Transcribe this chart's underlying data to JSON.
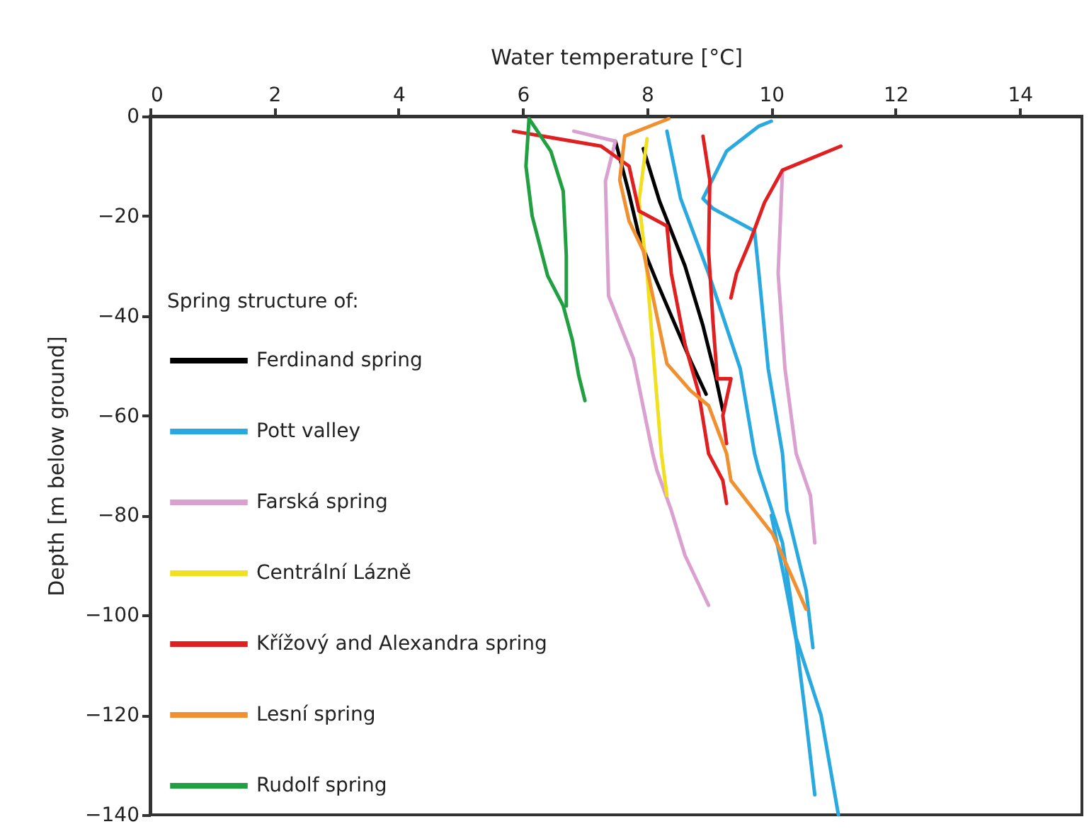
{
  "chart_data": {
    "type": "line",
    "xlabel": "Water temperature [°C]",
    "ylabel": "Depth [m below ground]",
    "legend_title": "Spring structure of:",
    "legend": "bottom left",
    "xlim": [
      0,
      15
    ],
    "xticks": [
      0,
      2,
      4,
      6,
      8,
      10,
      12,
      14
    ],
    "ylim": [
      -140,
      0
    ],
    "yticks": [
      0,
      -20,
      -40,
      -60,
      -80,
      -100,
      -120,
      -140
    ],
    "grid": false,
    "series": [
      {
        "name": "Ferdinand spring",
        "color": "#000000",
        "x": [
          7.49,
          7.7,
          7.89,
          8.15,
          8.39,
          8.7,
          8.95,
          null,
          7.94,
          8.2,
          8.61,
          8.9,
          9.1,
          9.22
        ],
        "values": [
          -5,
          -15,
          -25,
          -33,
          -40,
          -49,
          -55.7,
          null,
          -6.5,
          -17,
          -30,
          -42,
          -52,
          -59
        ]
      },
      {
        "name": "Pott valley",
        "color": "#29a9e0",
        "x": [
          8.32,
          8.54,
          8.99,
          9.5,
          9.73,
          9.8,
          10.18,
          10.4,
          10.8,
          11.08,
          null,
          10.0,
          9.8,
          9.28,
          8.9,
          9.06,
          9.73,
          9.8,
          9.95,
          10.18,
          10.25,
          10.56,
          10.67,
          null,
          10.0,
          10.2,
          10.4,
          10.55,
          10.7
        ],
        "values": [
          -3,
          -16.5,
          -31.5,
          -50.6,
          -67.6,
          -71,
          -85.5,
          -104.5,
          -120,
          -140,
          null,
          -1,
          -2,
          -7,
          -16.5,
          -18.5,
          -23,
          -31.5,
          -50.6,
          -67.6,
          -79,
          -95,
          -106.5,
          null,
          -80,
          -92,
          -105,
          -120,
          -136
        ]
      },
      {
        "name": "Farská spring",
        "color": "#d9a0d0",
        "x": [
          6.82,
          7.49,
          7.33,
          7.38,
          7.78,
          8.09,
          8.16,
          8.39,
          8.61,
          8.99,
          null,
          10.18,
          10.11,
          10.22,
          10.4,
          10.63,
          10.7
        ],
        "values": [
          -3,
          -5,
          -13,
          -36,
          -48.6,
          -67.6,
          -71,
          -79,
          -88,
          -98,
          null,
          -10.8,
          -31.5,
          -50.6,
          -67.6,
          -76,
          -85.5
        ]
      },
      {
        "name": "Centrální Lázně",
        "color": "#f0e020",
        "x": [
          8.0,
          7.87,
          8.0,
          8.12,
          8.23,
          8.32
        ],
        "values": [
          -4.5,
          -17,
          -31.5,
          -50.6,
          -67.6,
          -76
        ]
      },
      {
        "name": "Křížový and Alexandra spring",
        "color": "#e02020",
        "x": [
          5.85,
          7.26,
          7.71,
          7.87,
          8.32,
          8.39,
          8.61,
          8.83,
          8.99,
          9.22,
          9.28,
          null,
          8.9,
          9.01,
          8.99,
          9.06,
          9.13,
          9.35,
          9.22,
          9.28,
          null,
          11.12,
          10.18,
          9.89,
          9.66,
          9.44,
          9.35
        ],
        "values": [
          -3,
          -6,
          -10,
          -19,
          -22,
          -31.5,
          -45.7,
          -55.4,
          -67.6,
          -73,
          -77.6,
          null,
          -4,
          -12.8,
          -27,
          -41,
          -52.6,
          -52.6,
          -60,
          -65.6,
          null,
          -6,
          -10.8,
          -17.3,
          -25,
          -31.5,
          -36.4
        ]
      },
      {
        "name": "Lesní spring",
        "color": "#f09030",
        "x": [
          8.35,
          7.64,
          7.56,
          7.71,
          7.94,
          8.09,
          8.32,
          8.7,
          8.99,
          9.28,
          9.35,
          9.66,
          10.02,
          10.25,
          10.56
        ],
        "values": [
          -0.5,
          -4,
          -12.8,
          -21,
          -27,
          -36,
          -49.6,
          -55,
          -58,
          -67.6,
          -73,
          -78,
          -83.7,
          -90,
          -98.8
        ]
      },
      {
        "name": "Rudolf spring",
        "color": "#20a040",
        "x": [
          6.1,
          6.05,
          6.15,
          6.4,
          6.65,
          6.8,
          6.9,
          7.0,
          null,
          6.1,
          6.45,
          6.65,
          6.7,
          6.7
        ],
        "values": [
          -0.5,
          -10,
          -20,
          -32,
          -38,
          -45,
          -52,
          -57,
          null,
          -0.5,
          -7,
          -15,
          -28,
          -38
        ]
      }
    ]
  }
}
